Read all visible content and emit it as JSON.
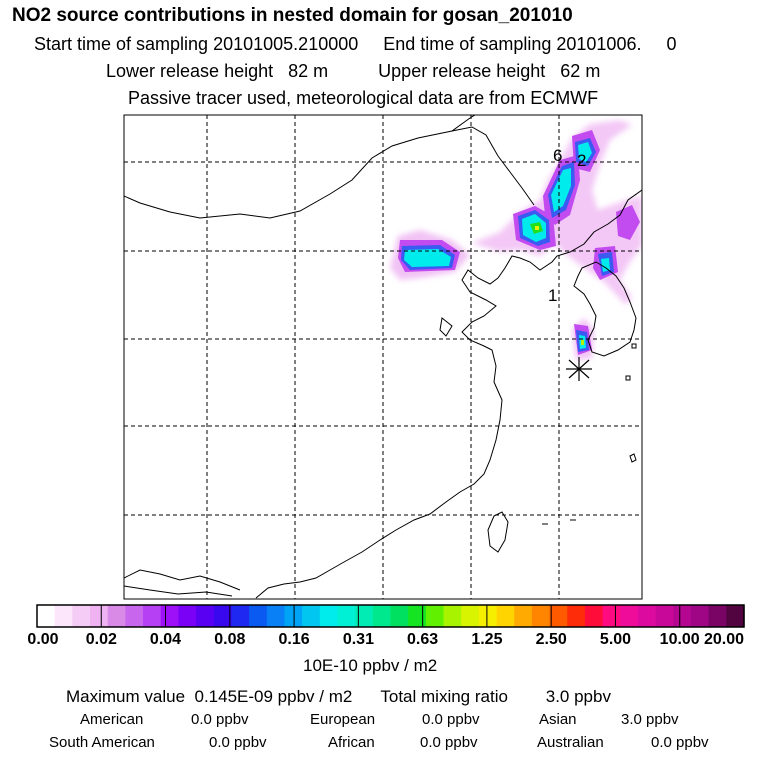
{
  "header": {
    "title": "NO2 source contributions in nested domain for gosan_201010",
    "start_label": "Start time of sampling",
    "start_value": "20101005.210000",
    "end_label": "End time of sampling",
    "end_value": "20101006.",
    "end_extra": "0",
    "lower_label": "Lower release height",
    "lower_value": "82 m",
    "upper_label": "Upper release height",
    "upper_value": "62 m",
    "note": "Passive tracer used, meteorological data are from ECMWF"
  },
  "map": {
    "source_labels": [
      "6",
      "2",
      "1"
    ],
    "receptor_marker": "station-asterisk"
  },
  "colorbar": {
    "tick_labels": [
      "0.00",
      "0.02",
      "0.04",
      "0.08",
      "0.16",
      "0.31",
      "0.63",
      "1.25",
      "2.50",
      "5.00",
      "10.00",
      "20.00"
    ],
    "units": "10E-10 ppbv / m2",
    "colors": [
      "#ffffff",
      "#fbe6fb",
      "#f5ccf5",
      "#eeb3f0",
      "#d98ae6",
      "#c866ee",
      "#b640f4",
      "#9e10f8",
      "#7a00f6",
      "#5a00f2",
      "#3a08ee",
      "#1e28f0",
      "#0a5af2",
      "#0a80f6",
      "#00a4f6",
      "#00c6f0",
      "#00ecec",
      "#00f0d6",
      "#00ecb4",
      "#00e88e",
      "#00e060",
      "#14e422",
      "#60f000",
      "#a8f400",
      "#d8f400",
      "#f6f000",
      "#ffd400",
      "#ffaa00",
      "#ff8400",
      "#ff5a00",
      "#ff2c0a",
      "#ff0c3a",
      "#ff0a80",
      "#f00c9a",
      "#dc0a9e",
      "#c80898",
      "#b40690",
      "#9e0686",
      "#7a0466",
      "#520440"
    ]
  },
  "summary": {
    "max_label": "Maximum value",
    "max_value": "0.145E-09 ppbv / m2",
    "total_label": "Total mixing ratio",
    "total_value": "3.0 ppbv",
    "regions": [
      {
        "name": "American",
        "value": "0.0 ppbv"
      },
      {
        "name": "European",
        "value": "0.0 ppbv"
      },
      {
        "name": "Asian",
        "value": "3.0 ppbv"
      },
      {
        "name": "South American",
        "value": "0.0 ppbv"
      },
      {
        "name": "African",
        "value": "0.0 ppbv"
      },
      {
        "name": "Australian",
        "value": "0.0 ppbv"
      }
    ]
  }
}
